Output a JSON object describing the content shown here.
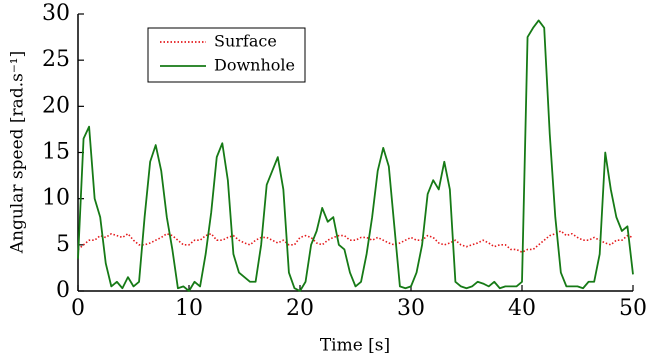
{
  "chart_data": {
    "type": "line",
    "x_label": "Time [s]",
    "y_label": "Angular speed [rad.s⁻¹]",
    "xlim": [
      0,
      50
    ],
    "xticks": [
      0,
      10,
      20,
      30,
      40,
      50
    ],
    "ylim": [
      0,
      30
    ],
    "yticks": [
      0,
      5,
      10,
      15,
      20,
      25,
      30
    ],
    "legend": "upper left",
    "grid": false,
    "x": [
      0,
      0.5,
      1,
      1.5,
      2,
      2.5,
      3,
      3.5,
      4,
      4.5,
      5,
      5.5,
      6,
      6.5,
      7,
      7.5,
      8,
      8.5,
      9,
      9.5,
      10,
      10.5,
      11,
      11.5,
      12,
      12.5,
      13,
      13.5,
      14,
      14.5,
      15,
      15.5,
      16,
      16.5,
      17,
      17.5,
      18,
      18.5,
      19,
      19.5,
      20,
      20.5,
      21,
      21.5,
      22,
      22.5,
      23,
      23.5,
      24,
      24.5,
      25,
      25.5,
      26,
      26.5,
      27,
      27.5,
      28,
      28.5,
      29,
      29.5,
      30,
      30.5,
      31,
      31.5,
      32,
      32.5,
      33,
      33.5,
      34,
      34.5,
      35,
      35.5,
      36,
      36.5,
      37,
      37.5,
      38,
      38.5,
      39,
      39.5,
      40,
      40.5,
      41,
      41.5,
      42,
      42.5,
      43,
      43.5,
      44,
      44.5,
      45,
      45.5,
      46,
      46.5,
      47,
      47.5,
      48,
      48.5,
      49,
      49.5,
      50
    ],
    "series": [
      {
        "name": "Surface",
        "color": "#e41a1c",
        "linestyle": "dotted",
        "values": [
          4.5,
          5,
          5.5,
          5.5,
          6,
          5.8,
          6.2,
          6,
          5.8,
          6.2,
          5.5,
          5,
          5,
          5.2,
          5.5,
          5.8,
          6.2,
          6,
          5.5,
          5,
          5,
          5.5,
          5.5,
          6,
          6.2,
          5.5,
          5.5,
          5.8,
          6,
          5.5,
          5.2,
          5,
          5.5,
          5.8,
          5.8,
          5.5,
          5.2,
          5.5,
          5,
          5,
          5.8,
          6,
          5.8,
          5.2,
          5,
          5.5,
          5.8,
          6,
          6,
          5.5,
          5.5,
          5.8,
          5.8,
          5.5,
          5.8,
          5.5,
          5.2,
          5,
          5.2,
          5.5,
          5.8,
          5.5,
          5.5,
          6,
          5.8,
          5.2,
          5,
          5.2,
          5.5,
          5,
          4.8,
          5,
          5.2,
          5.5,
          5.2,
          4.8,
          5,
          5,
          4.5,
          4.5,
          4.2,
          4.5,
          4.5,
          5,
          5.5,
          6,
          6.2,
          6.5,
          6,
          6.2,
          5.8,
          5.5,
          5.5,
          5.8,
          5.5,
          5.2,
          5,
          5.5,
          5.5,
          6,
          5.8
        ]
      },
      {
        "name": "Downhole",
        "color": "#167a16",
        "linestyle": "solid",
        "values": [
          3.5,
          16.5,
          17.8,
          10,
          8,
          3,
          0.5,
          1,
          0.3,
          1.5,
          0.5,
          1,
          8,
          14,
          15.8,
          13,
          8,
          4.5,
          0.3,
          0.5,
          0,
          1,
          0.5,
          4,
          8.5,
          14.5,
          16,
          12,
          4,
          2,
          1.5,
          1,
          1,
          5,
          11.5,
          13,
          14.5,
          11,
          2,
          0.3,
          0,
          1,
          5,
          6.5,
          9,
          7.5,
          8,
          5,
          4.5,
          2,
          0.5,
          1,
          4,
          8,
          13,
          15.5,
          13.5,
          7,
          0.5,
          0.3,
          0.5,
          2,
          5,
          10.5,
          12,
          11,
          14,
          11,
          1,
          0.5,
          0.3,
          0.5,
          1,
          0.8,
          0.5,
          1,
          0.3,
          0.5,
          0.5,
          0.5,
          1,
          27.5,
          28.5,
          29.3,
          28.5,
          17,
          8,
          2,
          0.5,
          0.5,
          0.5,
          0.3,
          1,
          1,
          4,
          15,
          11,
          8,
          6.5,
          7,
          1.8
        ]
      }
    ]
  }
}
